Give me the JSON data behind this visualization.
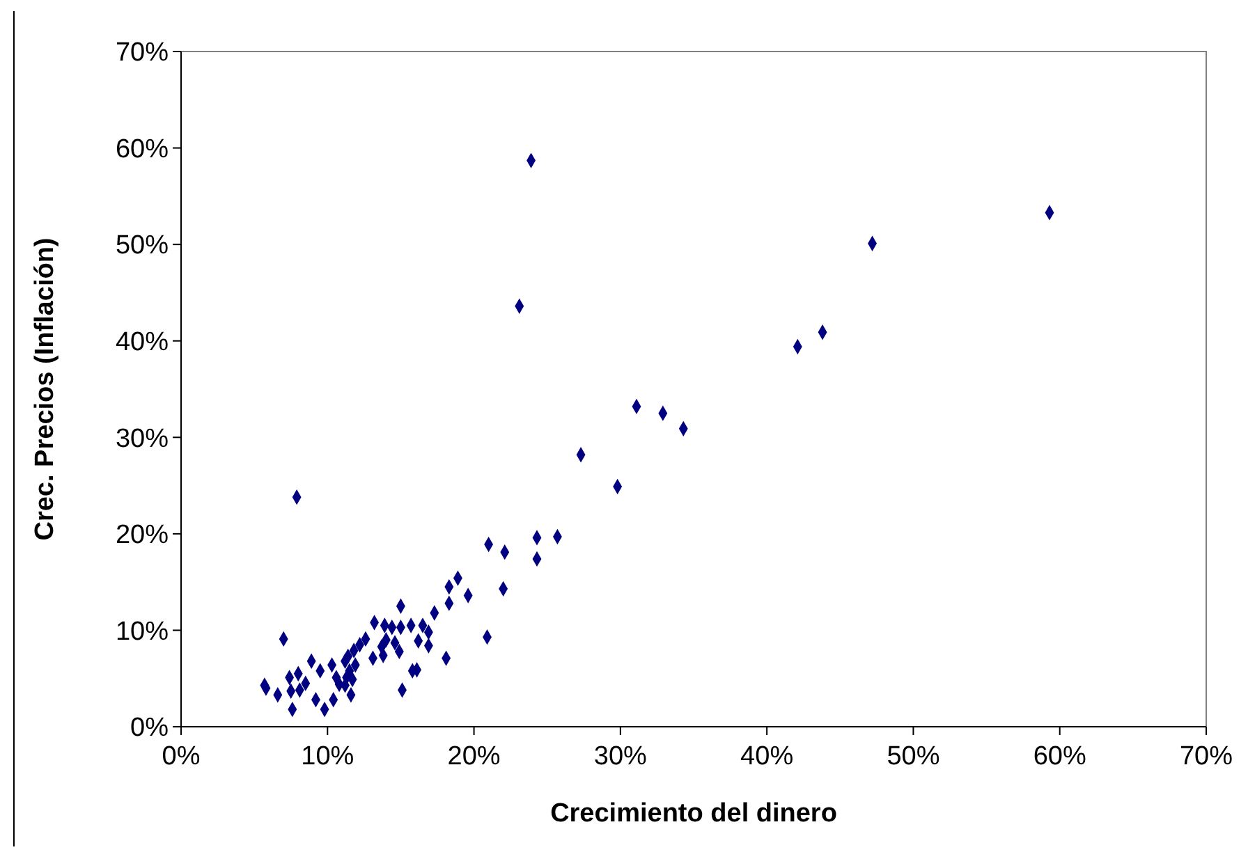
{
  "chart_data": {
    "type": "scatter",
    "xlabel": "Crecimiento del dinero",
    "ylabel": "Crec. Precios (Inflación)",
    "marker": "diamond",
    "grid": false,
    "xlim": [
      0,
      70
    ],
    "ylim": [
      0,
      70
    ],
    "xticks": [
      {
        "value": 0,
        "label": "0%"
      },
      {
        "value": 10,
        "label": "10%"
      },
      {
        "value": 20,
        "label": "20%"
      },
      {
        "value": 30,
        "label": "30%"
      },
      {
        "value": 40,
        "label": "40%"
      },
      {
        "value": 50,
        "label": "50%"
      },
      {
        "value": 60,
        "label": "60%"
      },
      {
        "value": 70,
        "label": "70%"
      }
    ],
    "yticks": [
      {
        "value": 0,
        "label": "0%"
      },
      {
        "value": 10,
        "label": "10%"
      },
      {
        "value": 20,
        "label": "20%"
      },
      {
        "value": 30,
        "label": "30%"
      },
      {
        "value": 40,
        "label": "40%"
      },
      {
        "value": 50,
        "label": "50%"
      },
      {
        "value": 60,
        "label": "60%"
      },
      {
        "value": 70,
        "label": "70%"
      }
    ],
    "series": [
      {
        "color": "#000080",
        "x": [
          59.3,
          47.2,
          23.9,
          23.1,
          43.8,
          42.1,
          31.1,
          32.9,
          34.3,
          27.3,
          29.8,
          7.9,
          21.0,
          22.1,
          24.3,
          25.7,
          24.3,
          22.0,
          18.9,
          18.3,
          19.6,
          18.3,
          17.3,
          15.0,
          20.9,
          18.1,
          15.1,
          7.0,
          13.2,
          13.9,
          14.4,
          15.0,
          15.7,
          16.5,
          16.9,
          16.2,
          16.9,
          14.6,
          14.9,
          14.0,
          13.7,
          13.8,
          13.1,
          12.6,
          12.2,
          11.8,
          11.4,
          11.9,
          11.2,
          11.5,
          11.3,
          11.7,
          11.2,
          11.6,
          10.3,
          9.5,
          8.9,
          10.6,
          10.8,
          10.4,
          9.8,
          9.2,
          8.0,
          7.4,
          8.5,
          8.1,
          7.5,
          7.6,
          6.6,
          5.7,
          5.8,
          16.1,
          15.8
        ],
        "values": [
          53.3,
          50.1,
          58.7,
          43.6,
          40.9,
          39.4,
          33.2,
          32.5,
          30.9,
          28.2,
          24.9,
          23.8,
          18.9,
          18.1,
          19.6,
          19.7,
          17.4,
          14.3,
          15.4,
          14.5,
          13.6,
          12.8,
          11.8,
          12.5,
          9.3,
          7.1,
          3.8,
          9.1,
          10.8,
          10.5,
          10.3,
          10.3,
          10.5,
          10.5,
          9.8,
          8.9,
          8.4,
          8.7,
          7.8,
          9.0,
          8.3,
          7.4,
          7.1,
          9.1,
          8.5,
          7.9,
          7.3,
          6.4,
          6.8,
          5.8,
          5.1,
          4.9,
          4.3,
          3.3,
          6.4,
          5.8,
          6.8,
          5.1,
          4.4,
          2.8,
          1.8,
          2.8,
          5.5,
          5.1,
          4.5,
          3.8,
          3.7,
          1.8,
          3.3,
          4.3,
          4.0,
          5.9,
          5.8
        ]
      }
    ]
  }
}
